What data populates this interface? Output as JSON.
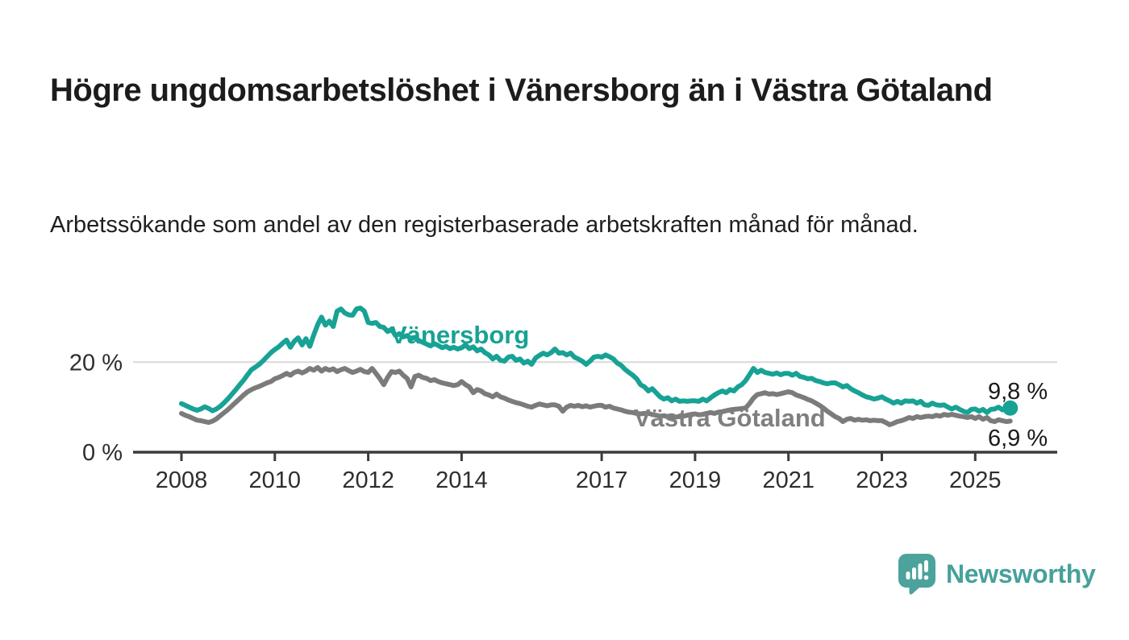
{
  "header": {
    "title": "Högre ungdomsarbetslöshet i Vänersborg än i Västra Götaland",
    "subtitle": "Arbetssökande som andel av den registerbaserade arbetskraften månad för månad."
  },
  "branding": {
    "logo_icon": "speech-bubble-bar-chart-icon",
    "logo_text": "Newsworthy",
    "logo_color": "#46A19B"
  },
  "colors": {
    "vanersborg_teal": "#17A295",
    "vastra_gray": "#7B7B7B",
    "gridline": "#D9D9D9",
    "axis": "#3B3B3B",
    "text": "#1C1C1C"
  },
  "chart_data": {
    "type": "line",
    "title": "Högre ungdomsarbetslöshet i Vänersborg än i Västra Götaland",
    "subtitle": "Arbetssökande som andel av den registerbaserade arbetskraften månad för månad.",
    "unit": "%",
    "x_start_year": 2008.0,
    "x_step_years": 0.0833333,
    "x_ticks": [
      2008,
      2010,
      2012,
      2014,
      2017,
      2019,
      2021,
      2023,
      2025
    ],
    "y_ticks": [
      {
        "value": 0,
        "label": "0 %"
      },
      {
        "value": 20,
        "label": "20 %"
      }
    ],
    "ylim": [
      0,
      34
    ],
    "grid": "horizontal-20-only",
    "legend_position": "inline-labels",
    "end_labels": {
      "vanersborg": "9,8 %",
      "vastra_gotaland": "6,9 %"
    },
    "series": [
      {
        "name": "Vänersborg",
        "color": "#17A295",
        "values": [
          10.8,
          10.4,
          10.0,
          9.6,
          9.3,
          9.6,
          10.1,
          9.7,
          9.2,
          9.6,
          10.2,
          11.0,
          11.9,
          12.9,
          13.9,
          15.0,
          16.0,
          17.2,
          18.3,
          18.9,
          19.5,
          20.3,
          21.2,
          22.1,
          22.8,
          23.4,
          24.2,
          24.9,
          23.3,
          24.6,
          25.4,
          23.8,
          25.2,
          23.5,
          26.0,
          28.3,
          30.0,
          28.2,
          29.1,
          27.9,
          31.3,
          31.8,
          30.9,
          30.5,
          30.4,
          31.8,
          32.0,
          31.3,
          28.8,
          28.6,
          28.8,
          27.9,
          27.7,
          26.8,
          27.3,
          25.9,
          26.3,
          25.6,
          25.9,
          25.2,
          25.5,
          24.8,
          24.4,
          24.0,
          23.6,
          24.1,
          23.7,
          23.2,
          23.5,
          23.0,
          23.3,
          22.9,
          23.2,
          23.8,
          23.0,
          23.4,
          22.5,
          22.9,
          22.1,
          21.6,
          20.7,
          21.3,
          20.4,
          20.2,
          21.1,
          21.3,
          20.4,
          20.7,
          19.8,
          20.2,
          19.5,
          20.9,
          21.5,
          22.0,
          21.6,
          22.1,
          22.9,
          22.0,
          22.1,
          21.6,
          22.0,
          21.1,
          20.7,
          20.2,
          19.5,
          20.2,
          21.1,
          21.3,
          21.1,
          21.6,
          21.2,
          20.7,
          19.8,
          19.3,
          18.4,
          17.7,
          17.1,
          16.3,
          15.0,
          14.5,
          13.6,
          14.1,
          13.2,
          12.3,
          11.8,
          12.1,
          11.4,
          11.8,
          11.3,
          11.4,
          11.3,
          11.4,
          11.4,
          11.3,
          11.8,
          11.4,
          12.1,
          12.7,
          13.2,
          13.6,
          13.2,
          13.9,
          13.6,
          14.5,
          15.0,
          15.9,
          17.2,
          18.6,
          17.7,
          18.2,
          17.7,
          17.5,
          17.3,
          17.6,
          17.2,
          17.5,
          17.5,
          17.1,
          17.5,
          16.8,
          16.6,
          16.3,
          16.4,
          15.9,
          15.7,
          15.4,
          15.2,
          15.4,
          15.4,
          15.0,
          14.5,
          14.8,
          14.1,
          13.6,
          13.2,
          12.7,
          12.3,
          12.1,
          11.8,
          12.0,
          12.3,
          11.8,
          11.4,
          10.9,
          11.3,
          10.9,
          11.4,
          11.3,
          11.4,
          10.9,
          11.3,
          10.5,
          10.4,
          10.9,
          10.5,
          10.4,
          10.5,
          10.0,
          9.6,
          10.0,
          9.5,
          9.1,
          8.8,
          9.5,
          9.6,
          9.1,
          9.5,
          8.8,
          9.5,
          9.6,
          10.0,
          9.4,
          9.6,
          9.8
        ]
      },
      {
        "name": "Västra Götaland",
        "color": "#7B7B7B",
        "values": [
          8.6,
          8.2,
          7.9,
          7.5,
          7.1,
          7.0,
          6.8,
          6.6,
          6.9,
          7.4,
          8.1,
          8.8,
          9.5,
          10.3,
          11.1,
          11.9,
          12.7,
          13.4,
          13.9,
          14.3,
          14.6,
          15.0,
          15.4,
          15.7,
          16.3,
          16.6,
          17.0,
          17.5,
          17.1,
          17.7,
          18.0,
          17.6,
          18.0,
          18.6,
          18.2,
          18.8,
          18.0,
          18.6,
          18.2,
          18.5,
          17.9,
          18.3,
          18.6,
          18.1,
          17.7,
          18.0,
          18.4,
          17.9,
          17.7,
          18.6,
          17.5,
          16.3,
          15.0,
          16.6,
          17.9,
          17.7,
          18.0,
          17.1,
          16.4,
          14.5,
          16.8,
          17.1,
          16.6,
          16.4,
          15.9,
          16.1,
          15.7,
          15.4,
          15.2,
          15.0,
          14.8,
          15.0,
          15.7,
          15.0,
          14.5,
          13.2,
          13.9,
          13.6,
          13.0,
          12.7,
          12.3,
          12.9,
          12.3,
          12.0,
          11.6,
          11.3,
          11.0,
          10.8,
          10.5,
          10.2,
          10.0,
          10.4,
          10.7,
          10.5,
          10.3,
          10.5,
          10.5,
          10.2,
          9.1,
          10.0,
          10.4,
          10.2,
          10.4,
          10.1,
          10.3,
          10.0,
          10.2,
          10.4,
          10.4,
          10.0,
          10.2,
          9.8,
          9.6,
          9.4,
          9.1,
          8.9,
          8.8,
          8.6,
          8.5,
          8.6,
          8.6,
          8.4,
          8.2,
          8.0,
          8.1,
          7.9,
          8.0,
          7.8,
          7.9,
          8.0,
          8.2,
          8.4,
          8.5,
          8.3,
          8.4,
          8.6,
          8.8,
          8.6,
          8.9,
          9.0,
          9.2,
          9.4,
          9.5,
          9.6,
          9.7,
          9.8,
          10.8,
          12.0,
          12.8,
          13.0,
          13.2,
          12.9,
          13.0,
          12.8,
          13.0,
          13.2,
          13.4,
          13.2,
          12.7,
          12.4,
          12.1,
          11.7,
          11.4,
          10.9,
          10.4,
          9.8,
          9.1,
          8.5,
          7.9,
          7.5,
          6.8,
          7.3,
          7.5,
          7.1,
          7.3,
          7.1,
          7.2,
          7.0,
          7.1,
          7.0,
          7.0,
          6.6,
          6.1,
          6.4,
          6.8,
          7.0,
          7.3,
          7.7,
          7.5,
          7.9,
          7.7,
          7.9,
          8.0,
          7.9,
          8.2,
          8.0,
          8.4,
          8.2,
          8.4,
          8.2,
          8.0,
          7.9,
          7.7,
          7.9,
          7.5,
          7.9,
          7.3,
          7.7,
          7.0,
          6.8,
          7.2,
          7.0,
          6.8,
          6.9
        ]
      }
    ]
  }
}
